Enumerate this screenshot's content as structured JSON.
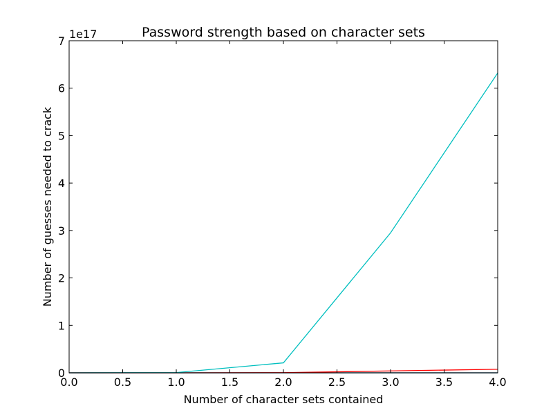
{
  "chart_data": {
    "type": "line",
    "title": "Password strength based on character sets",
    "xlabel": "Number of character sets contained",
    "ylabel": "Number of guesses needed to crack",
    "offset_label": "1e17",
    "xlim": [
      0.0,
      4.0
    ],
    "ylim": [
      0,
      7
    ],
    "xticks": [
      0.0,
      0.5,
      1.0,
      1.5,
      2.0,
      2.5,
      3.0,
      3.5,
      4.0
    ],
    "xtick_labels": [
      "0.0",
      "0.5",
      "1.0",
      "1.5",
      "2.0",
      "2.5",
      "3.0",
      "3.5",
      "4.0"
    ],
    "yticks": [
      0,
      1,
      2,
      3,
      4,
      5,
      6,
      7
    ],
    "ytick_labels": [
      "0",
      "1",
      "2",
      "3",
      "4",
      "5",
      "6",
      "7"
    ],
    "grid": false,
    "series": [
      {
        "color": "#0000ff",
        "x": [
          0,
          1,
          2,
          3,
          4
        ],
        "y": [
          0,
          0,
          0,
          0,
          0
        ]
      },
      {
        "color": "#008000",
        "x": [
          0,
          1,
          2,
          3,
          4
        ],
        "y": [
          0,
          0,
          0,
          0,
          0
        ]
      },
      {
        "color": "#ff0000",
        "x": [
          0,
          1,
          2,
          3,
          4
        ],
        "y": [
          0,
          0,
          0.003,
          0.04,
          0.075
        ]
      },
      {
        "color": "#00bfbf",
        "x": [
          0,
          1,
          2,
          3,
          4
        ],
        "y": [
          0,
          0.005,
          0.21,
          2.95,
          6.32
        ]
      }
    ]
  }
}
